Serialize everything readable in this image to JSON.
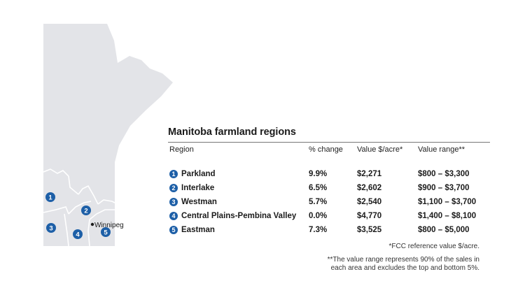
{
  "title": "Manitoba farmland regions",
  "columns": [
    "Region",
    "% change",
    "Value $/acre*",
    "Value range**"
  ],
  "rows": [
    {
      "num": "1",
      "region": "Parkland",
      "change": "9.9%",
      "value": "$2,271",
      "range": "$800 – $3,300"
    },
    {
      "num": "2",
      "region": "Interlake",
      "change": "6.5%",
      "value": "$2,602",
      "range": "$900 – $3,700"
    },
    {
      "num": "3",
      "region": "Westman",
      "change": "5.7%",
      "value": "$2,540",
      "range": "$1,100 – $3,700"
    },
    {
      "num": "4",
      "region": "Central Plains-Pembina Valley",
      "change": "0.0%",
      "value": "$4,770",
      "range": "$1,400 – $8,100"
    },
    {
      "num": "5",
      "region": "Eastman",
      "change": "7.3%",
      "value": "$3,525",
      "range": "$800 – $5,000"
    }
  ],
  "footnote1": "*FCC reference value $/acre.",
  "footnote2_line1": "**The value range represents 90% of the sales in",
  "footnote2_line2": "each area and excludes the top and bottom 5%.",
  "map": {
    "city": "Winnipeg",
    "markers": [
      "1",
      "2",
      "3",
      "4",
      "5"
    ],
    "colors": {
      "land": "#e3e4e8",
      "marker": "#1d5fa7",
      "border": "#ffffff"
    }
  }
}
